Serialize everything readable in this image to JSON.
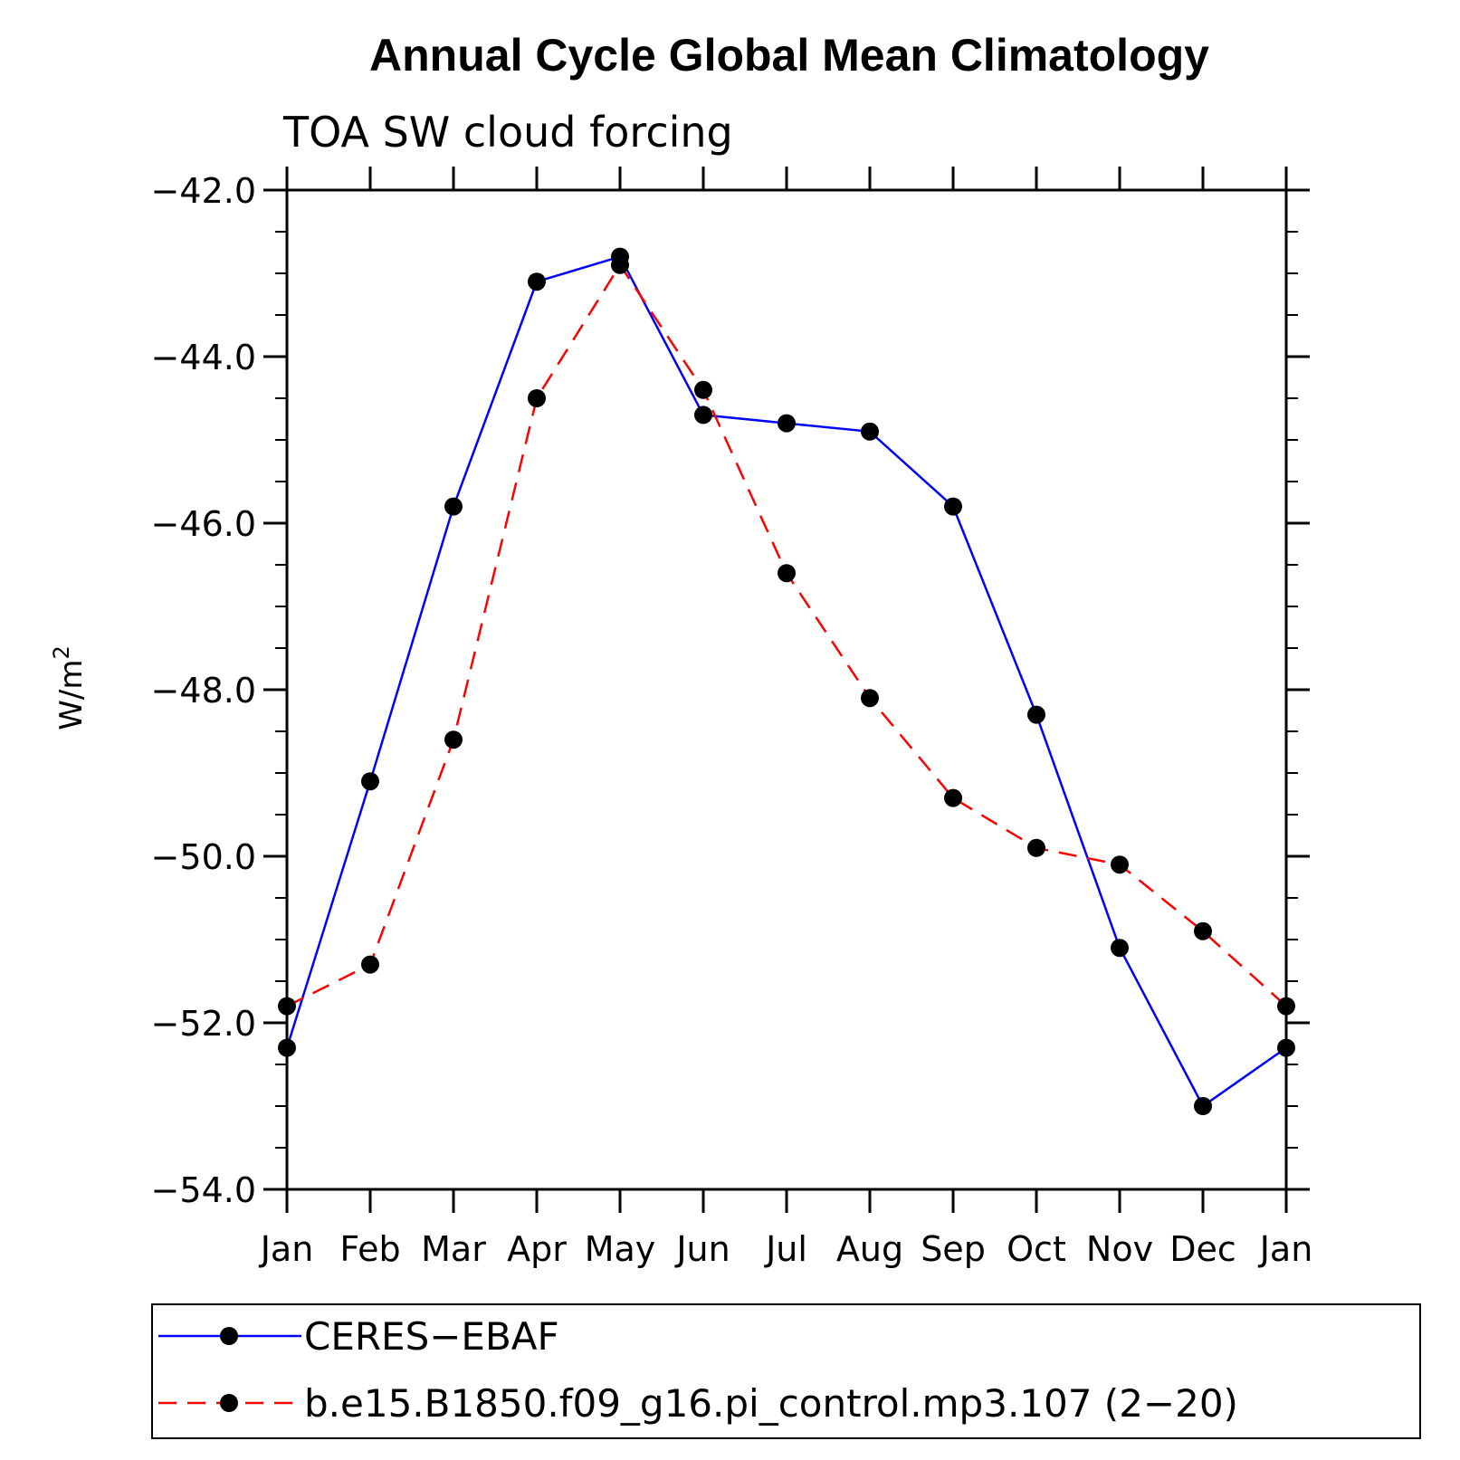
{
  "chart_data": {
    "type": "line",
    "title": "Annual Cycle Global Mean Climatology",
    "subtitle": "TOA SW cloud forcing",
    "ylabel": "W/m",
    "ylabel_sup": "2",
    "ylim": [
      -54.0,
      -42.0
    ],
    "yticks": [
      -42.0,
      -44.0,
      -46.0,
      -48.0,
      -50.0,
      -52.0,
      -54.0
    ],
    "ytick_labels": [
      "−42.0",
      "−44.0",
      "−46.0",
      "−48.0",
      "−50.0",
      "−52.0",
      "−54.0"
    ],
    "categories": [
      "Jan",
      "Feb",
      "Mar",
      "Apr",
      "May",
      "Jun",
      "Jul",
      "Aug",
      "Sep",
      "Oct",
      "Nov",
      "Dec",
      "Jan"
    ],
    "grid": false,
    "legend_position": "bottom",
    "series": [
      {
        "name": "CERES−EBAF",
        "color": "#0000ff",
        "dash": "solid",
        "values": [
          -52.3,
          -49.1,
          -45.8,
          -43.1,
          -42.8,
          -44.7,
          -44.8,
          -44.9,
          -45.8,
          -48.3,
          -51.1,
          -53.0,
          -52.3
        ]
      },
      {
        "name": "b.e15.B1850.f09_g16.pi_control.mp3.107 (2−20)",
        "color": "#ff0000",
        "dash": "dashed",
        "values": [
          -51.8,
          -51.3,
          -48.6,
          -44.5,
          -42.9,
          -44.4,
          -46.6,
          -48.1,
          -49.3,
          -49.9,
          -50.1,
          -50.9,
          -51.8
        ]
      }
    ]
  }
}
